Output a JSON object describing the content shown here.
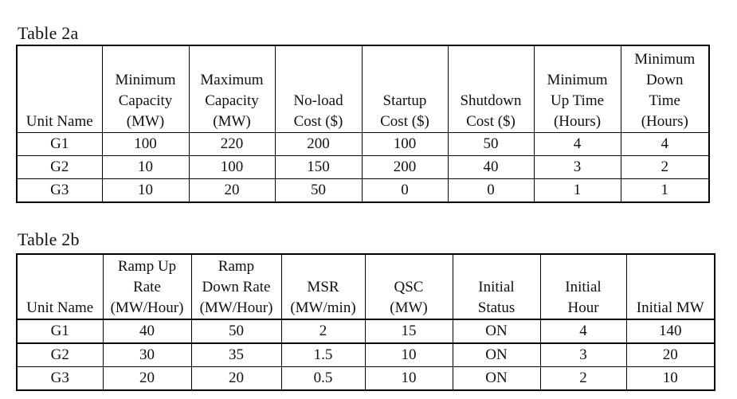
{
  "table_2a": {
    "caption": "Table 2a",
    "headers": [
      [
        "Unit Name"
      ],
      [
        "Minimum",
        "Capacity",
        "(MW)"
      ],
      [
        "Maximum",
        "Capacity",
        "(MW)"
      ],
      [
        "No-load",
        "Cost ($)"
      ],
      [
        "Startup",
        "Cost ($)"
      ],
      [
        "Shutdown",
        "Cost ($)"
      ],
      [
        "Minimum",
        "Up Time",
        "(Hours)"
      ],
      [
        "Minimum",
        "Down",
        "Time",
        "(Hours)"
      ]
    ],
    "rows": [
      [
        "G1",
        "100",
        "220",
        "200",
        "100",
        "50",
        "4",
        "4"
      ],
      [
        "G2",
        "10",
        "100",
        "150",
        "200",
        "40",
        "3",
        "2"
      ],
      [
        "G3",
        "10",
        "20",
        "50",
        "0",
        "0",
        "1",
        "1"
      ]
    ]
  },
  "table_2b": {
    "caption": "Table 2b",
    "headers": [
      [
        "Unit Name"
      ],
      [
        "Ramp Up",
        "Rate",
        "(MW/Hour)"
      ],
      [
        "Ramp",
        "Down Rate",
        "(MW/Hour)"
      ],
      [
        "MSR",
        "(MW/min)"
      ],
      [
        "QSC",
        "(MW)"
      ],
      [
        "Initial",
        "Status"
      ],
      [
        "Initial",
        "Hour"
      ],
      [
        "Initial MW"
      ]
    ],
    "rows": [
      [
        "G1",
        "40",
        "50",
        "2",
        "15",
        "ON",
        "4",
        "140"
      ],
      [
        "G2",
        "30",
        "35",
        "1.5",
        "10",
        "ON",
        "3",
        "20"
      ],
      [
        "G3",
        "20",
        "20",
        "0.5",
        "10",
        "ON",
        "2",
        "10"
      ]
    ]
  }
}
